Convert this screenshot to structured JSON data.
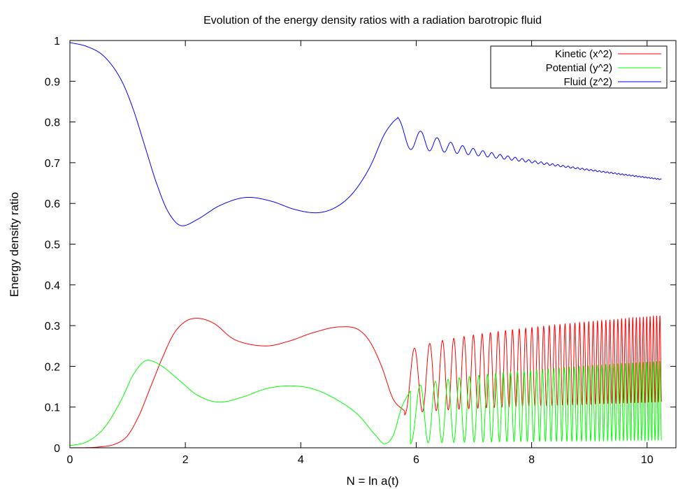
{
  "chart_data": {
    "type": "line",
    "title": "Evolution of the energy density ratios with a radiation barotropic fluid",
    "xlabel": "N = ln a(t)",
    "ylabel": "Energy density ratio",
    "xlim": [
      0,
      10.5
    ],
    "ylim": [
      0,
      1
    ],
    "xticks": [
      "0",
      "2",
      "4",
      "6",
      "8",
      "10"
    ],
    "yticks": [
      "0",
      "0.1",
      "0.2",
      "0.3",
      "0.4",
      "0.5",
      "0.6",
      "0.7",
      "0.8",
      "0.9",
      "1"
    ],
    "grid": false,
    "legend_position": "top-right",
    "series": [
      {
        "name": "Kinetic (x^2)",
        "color": "#ff0000",
        "x": [
          0,
          0.5,
          0.8,
          1.0,
          1.2,
          1.4,
          1.6,
          1.8,
          2.0,
          2.2,
          2.5,
          2.8,
          3.0,
          3.4,
          3.8,
          4.2,
          4.7,
          5.0,
          5.2,
          5.4,
          5.6,
          5.8
        ],
        "y": [
          0,
          0.002,
          0.01,
          0.03,
          0.08,
          0.15,
          0.22,
          0.28,
          0.31,
          0.318,
          0.305,
          0.27,
          0.258,
          0.25,
          0.262,
          0.282,
          0.297,
          0.29,
          0.26,
          0.2,
          0.12,
          0.09
        ],
        "oscillation": {
          "start": 5.8,
          "end": 10.25,
          "period_start": 0.42,
          "period_end": 0.055,
          "max_start": 0.225,
          "max_end": 0.325,
          "min_start": 0.08,
          "min_end": 0.112
        }
      },
      {
        "name": "Potential (y^2)",
        "color": "#00ff00",
        "x": [
          0,
          0.3,
          0.6,
          0.9,
          1.1,
          1.35,
          1.6,
          1.9,
          2.2,
          2.6,
          3.0,
          3.4,
          3.8,
          4.2,
          4.6,
          5.0,
          5.3,
          5.45,
          5.6,
          5.75,
          5.9
        ],
        "y": [
          0.005,
          0.015,
          0.05,
          0.12,
          0.18,
          0.215,
          0.2,
          0.165,
          0.13,
          0.112,
          0.125,
          0.145,
          0.152,
          0.145,
          0.12,
          0.08,
          0.03,
          0.01,
          0.03,
          0.1,
          0.14
        ],
        "oscillation": {
          "start": 5.9,
          "end": 10.25,
          "period_start": 0.42,
          "period_end": 0.055,
          "max_start": 0.14,
          "max_end": 0.213,
          "min_start": 0.01,
          "min_end": 0.018
        }
      },
      {
        "name": "Fluid (z^2)",
        "color": "#0000ff",
        "x": [
          0,
          0.3,
          0.6,
          0.9,
          1.1,
          1.3,
          1.5,
          1.7,
          1.95,
          2.2,
          2.6,
          3.1,
          3.5,
          3.9,
          4.25,
          4.6,
          4.9,
          5.2,
          5.45,
          5.6,
          5.68
        ],
        "y": [
          0.995,
          0.985,
          0.96,
          0.9,
          0.83,
          0.74,
          0.65,
          0.58,
          0.545,
          0.56,
          0.595,
          0.615,
          0.605,
          0.585,
          0.577,
          0.59,
          0.625,
          0.69,
          0.77,
          0.8,
          0.81
        ],
        "oscillation": {
          "start": 5.68,
          "end": 10.25,
          "period_start": 0.62,
          "period_end": 0.05,
          "base_start": 0.775,
          "base_end": 0.659,
          "amp_start": 0.036,
          "amp_end": 0.001
        }
      }
    ]
  }
}
